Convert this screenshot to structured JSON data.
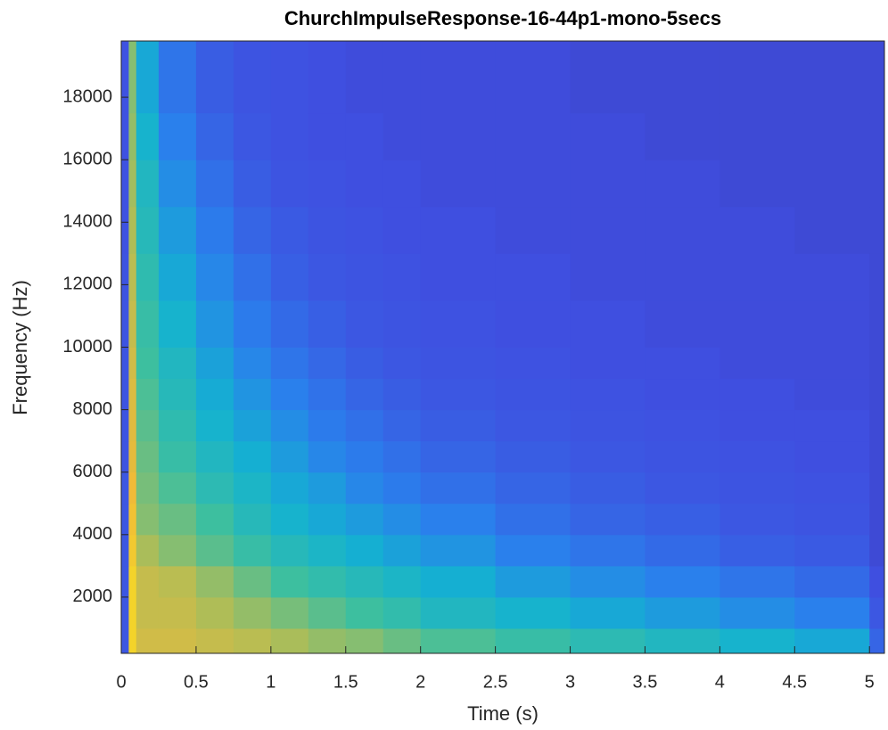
{
  "chart_data": {
    "type": "spectrogram",
    "title": "ChurchImpulseResponse-16-44p1-mono-5secs",
    "xlabel": "Time (s)",
    "ylabel": "Frequency (Hz)",
    "xlim": [
      0,
      5.1
    ],
    "ylim": [
      200,
      19800
    ],
    "xticks": [
      0,
      0.5,
      1,
      1.5,
      2,
      2.5,
      3,
      3.5,
      4,
      4.5,
      5
    ],
    "yticks": [
      2000,
      4000,
      6000,
      8000,
      10000,
      12000,
      14000,
      16000,
      18000
    ],
    "time_edges": [
      0,
      0.05,
      0.1,
      0.25,
      0.5,
      0.75,
      1,
      1.25,
      1.5,
      1.75,
      2,
      2.5,
      3,
      3.5,
      4,
      4.5,
      5,
      5.1
    ],
    "freq_edges": [
      200,
      1000,
      2000,
      3000,
      4000,
      5000,
      6000,
      7000,
      8000,
      9000,
      10000,
      11500,
      13000,
      14500,
      16000,
      17500,
      19800
    ],
    "clim": [
      0,
      1
    ],
    "colormap": [
      "#3a2fa0",
      "#3f4fe0",
      "#2a80ec",
      "#14b2d0",
      "#3dbf9f",
      "#aabd5a",
      "#f0bb38",
      "#f5e520"
    ],
    "colormap_stops": [
      0,
      0.12,
      0.3,
      0.45,
      0.6,
      0.75,
      0.88,
      1
    ],
    "values": [
      [
        0.15,
        0.95,
        0.82,
        0.82,
        0.8,
        0.78,
        0.75,
        0.72,
        0.7,
        0.66,
        0.62,
        0.58,
        0.54,
        0.5,
        0.46,
        0.42,
        0.2
      ],
      [
        0.15,
        0.95,
        0.8,
        0.8,
        0.76,
        0.72,
        0.68,
        0.64,
        0.6,
        0.56,
        0.5,
        0.46,
        0.42,
        0.38,
        0.34,
        0.3,
        0.15
      ],
      [
        0.15,
        0.95,
        0.8,
        0.78,
        0.72,
        0.66,
        0.6,
        0.56,
        0.52,
        0.48,
        0.44,
        0.38,
        0.34,
        0.3,
        0.26,
        0.22,
        0.12
      ],
      [
        0.15,
        0.92,
        0.75,
        0.7,
        0.64,
        0.58,
        0.52,
        0.48,
        0.44,
        0.4,
        0.36,
        0.3,
        0.26,
        0.22,
        0.18,
        0.16,
        0.1
      ],
      [
        0.15,
        0.9,
        0.7,
        0.66,
        0.6,
        0.52,
        0.46,
        0.42,
        0.38,
        0.34,
        0.3,
        0.24,
        0.2,
        0.18,
        0.15,
        0.14,
        0.1
      ],
      [
        0.15,
        0.88,
        0.68,
        0.62,
        0.54,
        0.48,
        0.42,
        0.38,
        0.32,
        0.28,
        0.24,
        0.2,
        0.17,
        0.15,
        0.14,
        0.13,
        0.1
      ],
      [
        0.14,
        0.86,
        0.66,
        0.58,
        0.5,
        0.44,
        0.38,
        0.32,
        0.28,
        0.24,
        0.2,
        0.17,
        0.15,
        0.14,
        0.13,
        0.12,
        0.1
      ],
      [
        0.14,
        0.85,
        0.64,
        0.55,
        0.46,
        0.4,
        0.34,
        0.28,
        0.24,
        0.2,
        0.17,
        0.15,
        0.14,
        0.13,
        0.12,
        0.12,
        0.1
      ],
      [
        0.14,
        0.84,
        0.62,
        0.52,
        0.43,
        0.36,
        0.3,
        0.25,
        0.2,
        0.17,
        0.15,
        0.14,
        0.13,
        0.12,
        0.12,
        0.11,
        0.1
      ],
      [
        0.14,
        0.82,
        0.6,
        0.5,
        0.4,
        0.32,
        0.26,
        0.21,
        0.17,
        0.15,
        0.14,
        0.13,
        0.12,
        0.12,
        0.11,
        0.11,
        0.1
      ],
      [
        0.14,
        0.8,
        0.58,
        0.46,
        0.36,
        0.28,
        0.22,
        0.18,
        0.15,
        0.14,
        0.13,
        0.12,
        0.12,
        0.11,
        0.11,
        0.11,
        0.1
      ],
      [
        0.14,
        0.78,
        0.55,
        0.42,
        0.32,
        0.24,
        0.18,
        0.15,
        0.14,
        0.13,
        0.12,
        0.12,
        0.11,
        0.11,
        0.11,
        0.11,
        0.1
      ],
      [
        0.13,
        0.76,
        0.52,
        0.38,
        0.28,
        0.2,
        0.16,
        0.14,
        0.13,
        0.12,
        0.12,
        0.11,
        0.11,
        0.11,
        0.11,
        0.1,
        0.1
      ],
      [
        0.13,
        0.74,
        0.5,
        0.34,
        0.24,
        0.17,
        0.14,
        0.13,
        0.12,
        0.12,
        0.11,
        0.11,
        0.11,
        0.11,
        0.1,
        0.1,
        0.1
      ],
      [
        0.13,
        0.72,
        0.46,
        0.3,
        0.2,
        0.15,
        0.13,
        0.12,
        0.12,
        0.11,
        0.11,
        0.11,
        0.11,
        0.1,
        0.1,
        0.1,
        0.1
      ],
      [
        0.13,
        0.7,
        0.42,
        0.26,
        0.17,
        0.14,
        0.13,
        0.12,
        0.11,
        0.11,
        0.11,
        0.11,
        0.1,
        0.1,
        0.1,
        0.1,
        0.1
      ]
    ]
  }
}
